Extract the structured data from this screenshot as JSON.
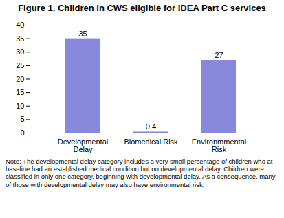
{
  "chart_data": {
    "type": "bar",
    "title": "Figure 1. Children in CWS eligible for IDEA Part C services",
    "categories": [
      "Developmental\nDelay",
      "Biomedical Risk",
      "Environmmental\nRisk"
    ],
    "values": [
      35,
      0.4,
      27
    ],
    "color": "#8888dd",
    "ylim": [
      0,
      40
    ],
    "yticks": [
      0,
      5,
      10,
      15,
      20,
      25,
      30,
      35,
      40
    ],
    "grid": false,
    "data_labels": true,
    "note": "Note: The developmental delay category includes a very small percentage of children who at baseline had an established medical condition but no developmental delay. Children were classified in only one category, beginning with developmental delay. As a consequence, many of those with developmental delay may also have environmental risk."
  }
}
